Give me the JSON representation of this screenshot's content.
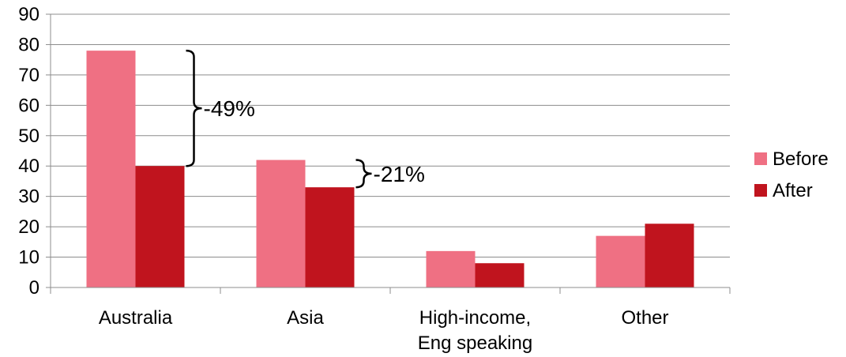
{
  "chart_data": {
    "type": "bar",
    "categories": [
      [
        "Australia"
      ],
      [
        "Asia"
      ],
      [
        "High-income,",
        "Eng speaking"
      ],
      [
        "Other"
      ]
    ],
    "series": [
      {
        "name": "Before",
        "color": "#ef7083",
        "values": [
          78,
          42,
          12,
          17
        ]
      },
      {
        "name": "After",
        "color": "#c0141e",
        "values": [
          40,
          33,
          8,
          21
        ]
      }
    ],
    "ylim": [
      0,
      90
    ],
    "yticks": [
      0,
      10,
      20,
      30,
      40,
      50,
      60,
      70,
      80,
      90
    ],
    "grid": true,
    "legend_position": "right",
    "annotations": [
      {
        "category_index": 0,
        "from": 78,
        "to": 40,
        "text": "-49%"
      },
      {
        "category_index": 1,
        "from": 42,
        "to": 33,
        "text": "-21%"
      }
    ]
  }
}
